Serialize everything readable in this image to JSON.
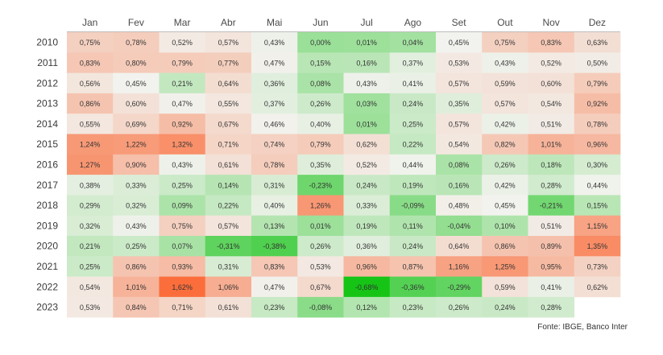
{
  "chart_data": {
    "type": "heatmap",
    "columns": [
      "Jan",
      "Fev",
      "Mar",
      "Abr",
      "Mai",
      "Jun",
      "Jul",
      "Ago",
      "Set",
      "Out",
      "Nov",
      "Dez"
    ],
    "rows": [
      "2010",
      "2011",
      "2012",
      "2013",
      "2014",
      "2015",
      "2016",
      "2017",
      "2018",
      "2019",
      "2020",
      "2021",
      "2022",
      "2023"
    ],
    "values": [
      [
        0.75,
        0.78,
        0.52,
        0.57,
        0.43,
        0.0,
        0.01,
        0.04,
        0.45,
        0.75,
        0.83,
        0.63
      ],
      [
        0.83,
        0.8,
        0.79,
        0.77,
        0.47,
        0.15,
        0.16,
        0.37,
        0.53,
        0.43,
        0.52,
        0.5
      ],
      [
        0.56,
        0.45,
        0.21,
        0.64,
        0.36,
        0.08,
        0.43,
        0.41,
        0.57,
        0.59,
        0.6,
        0.79
      ],
      [
        0.86,
        0.6,
        0.47,
        0.55,
        0.37,
        0.26,
        0.03,
        0.24,
        0.35,
        0.57,
        0.54,
        0.92
      ],
      [
        0.55,
        0.69,
        0.92,
        0.67,
        0.46,
        0.4,
        0.01,
        0.25,
        0.57,
        0.42,
        0.51,
        0.78
      ],
      [
        1.24,
        1.22,
        1.32,
        0.71,
        0.74,
        0.79,
        0.62,
        0.22,
        0.54,
        0.82,
        1.01,
        0.96
      ],
      [
        1.27,
        0.9,
        0.43,
        0.61,
        0.78,
        0.35,
        0.52,
        0.44,
        0.08,
        0.26,
        0.18,
        0.3
      ],
      [
        0.38,
        0.33,
        0.25,
        0.14,
        0.31,
        -0.23,
        0.24,
        0.19,
        0.16,
        0.42,
        0.28,
        0.44
      ],
      [
        0.29,
        0.32,
        0.09,
        0.22,
        0.4,
        1.26,
        0.33,
        -0.09,
        0.48,
        0.45,
        -0.21,
        0.15
      ],
      [
        0.32,
        0.43,
        0.75,
        0.57,
        0.13,
        0.01,
        0.19,
        0.11,
        -0.04,
        0.1,
        0.51,
        1.15
      ],
      [
        0.21,
        0.25,
        0.07,
        -0.31,
        -0.38,
        0.26,
        0.36,
        0.24,
        0.64,
        0.86,
        0.89,
        1.35
      ],
      [
        0.25,
        0.86,
        0.93,
        0.31,
        0.83,
        0.53,
        0.96,
        0.87,
        1.16,
        1.25,
        0.95,
        0.73
      ],
      [
        0.54,
        1.01,
        1.62,
        1.06,
        0.47,
        0.67,
        -0.68,
        -0.36,
        -0.29,
        0.59,
        0.41,
        0.62
      ],
      [
        0.53,
        0.84,
        0.71,
        0.61,
        0.23,
        -0.08,
        0.12,
        0.23,
        0.26,
        0.24,
        0.28,
        null
      ]
    ],
    "value_suffix": "%",
    "decimal_separator": ",",
    "color_scale": {
      "low": "#16c416",
      "mid": "#f2f2ee",
      "high": "#fb6e3c",
      "min": -0.68,
      "mid_value": 0.45,
      "max": 1.62
    },
    "source": "Fonte: IBGE, Banco Inter"
  }
}
